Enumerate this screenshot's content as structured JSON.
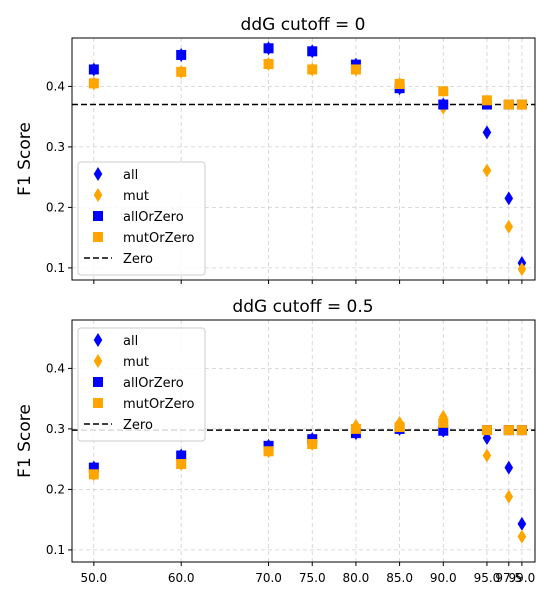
{
  "chart_data": [
    {
      "type": "scatter",
      "title": "ddG cutoff = 0",
      "xlabel": "",
      "ylabel": "F1 Score",
      "ylim": [
        0.08,
        0.48
      ],
      "yticks": [
        0.1,
        0.2,
        0.3,
        0.4
      ],
      "ytick_labels": [
        "0.1",
        "0.2",
        "0.3",
        "0.4"
      ],
      "xlim": [
        47.5,
        100.5
      ],
      "x": [
        50,
        60,
        70,
        75,
        80,
        85,
        90,
        95,
        97.5,
        99
      ],
      "show_xtick_labels": false,
      "grid": true,
      "legend": "lower-left",
      "zero_line": 0.37,
      "series": [
        {
          "name": "all",
          "marker": "diamond",
          "color": "#0000ff",
          "values": [
            0.428,
            0.452,
            0.463,
            0.458,
            0.436,
            0.397,
            0.37,
            0.324,
            0.215,
            0.108
          ]
        },
        {
          "name": "mut",
          "marker": "diamond",
          "color": "#ffa500",
          "values": [
            0.405,
            0.424,
            0.437,
            0.428,
            0.428,
            0.404,
            0.365,
            0.261,
            0.168,
            0.098
          ]
        },
        {
          "name": "allOrZero",
          "marker": "square",
          "color": "#0000ff",
          "values": [
            0.428,
            0.452,
            0.463,
            0.458,
            0.436,
            0.397,
            0.37,
            0.37,
            0.37,
            0.37
          ]
        },
        {
          "name": "mutOrZero",
          "marker": "square",
          "color": "#ffa500",
          "values": [
            0.405,
            0.424,
            0.437,
            0.428,
            0.428,
            0.404,
            0.392,
            0.377,
            0.37,
            0.37
          ]
        }
      ],
      "zero_label": "Zero"
    },
    {
      "type": "scatter",
      "title": "ddG cutoff = 0.5",
      "xlabel": "",
      "ylabel": "F1 Score",
      "ylim": [
        0.08,
        0.48
      ],
      "yticks": [
        0.1,
        0.2,
        0.3,
        0.4
      ],
      "ytick_labels": [
        "0.1",
        "0.2",
        "0.3",
        "0.4"
      ],
      "xlim": [
        47.5,
        100.5
      ],
      "x": [
        50,
        60,
        70,
        75,
        80,
        85,
        90,
        95,
        97.5,
        99
      ],
      "show_xtick_labels": true,
      "xtick_labels": [
        "50.0",
        "60.0",
        "70.0",
        "75.0",
        "80.0",
        "85.0",
        "90.0",
        "95.0",
        "97.5",
        "99.0"
      ],
      "grid": true,
      "legend": "upper-left",
      "zero_line": 0.298,
      "series": [
        {
          "name": "all",
          "marker": "diamond",
          "color": "#0000ff",
          "values": [
            0.236,
            0.256,
            0.272,
            0.283,
            0.293,
            0.3,
            0.297,
            0.285,
            0.236,
            0.143
          ]
        },
        {
          "name": "mut",
          "marker": "diamond",
          "color": "#ffa500",
          "values": [
            0.225,
            0.242,
            0.263,
            0.275,
            0.305,
            0.31,
            0.32,
            0.256,
            0.188,
            0.122
          ]
        },
        {
          "name": "allOrZero",
          "marker": "square",
          "color": "#0000ff",
          "values": [
            0.236,
            0.256,
            0.272,
            0.283,
            0.293,
            0.3,
            0.297,
            0.298,
            0.298,
            0.298
          ]
        },
        {
          "name": "mutOrZero",
          "marker": "square",
          "color": "#ffa500",
          "values": [
            0.225,
            0.242,
            0.263,
            0.275,
            0.3,
            0.303,
            0.31,
            0.298,
            0.298,
            0.298
          ]
        }
      ],
      "zero_label": "Zero"
    }
  ]
}
